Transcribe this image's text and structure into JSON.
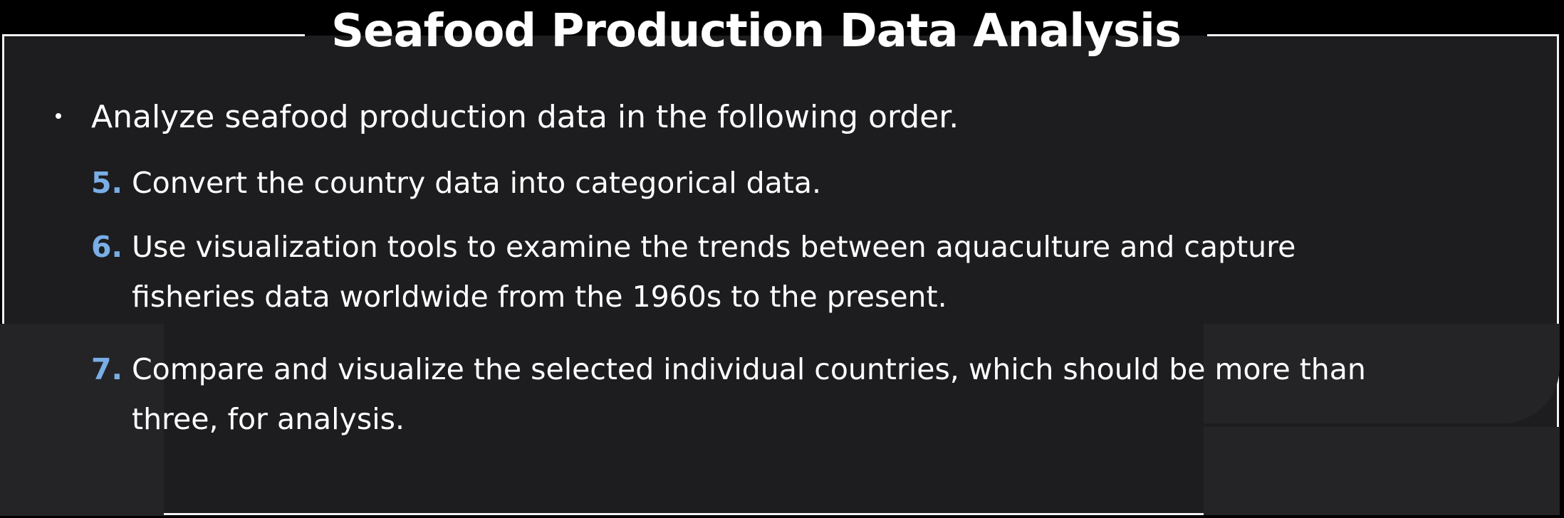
{
  "title": "Seafood Production Data Analysis",
  "intro": "Analyze seafood production data in the following order.",
  "items": [
    {
      "number": "5.",
      "lines": [
        "Convert the country data into categorical data."
      ]
    },
    {
      "number": "6.",
      "lines": [
        "Use visualization tools to examine the trends between aquaculture and capture",
        "fisheries data worldwide from the 1960s to the present."
      ]
    },
    {
      "number": "7.",
      "lines": [
        "Compare and visualize the selected individual countries, which should be more than",
        "three, for analysis."
      ]
    }
  ],
  "colors": {
    "background": "#1d1d1f",
    "frame": "#f2f2f2",
    "text": "#ffffff",
    "number_accent": "#79aee6"
  }
}
